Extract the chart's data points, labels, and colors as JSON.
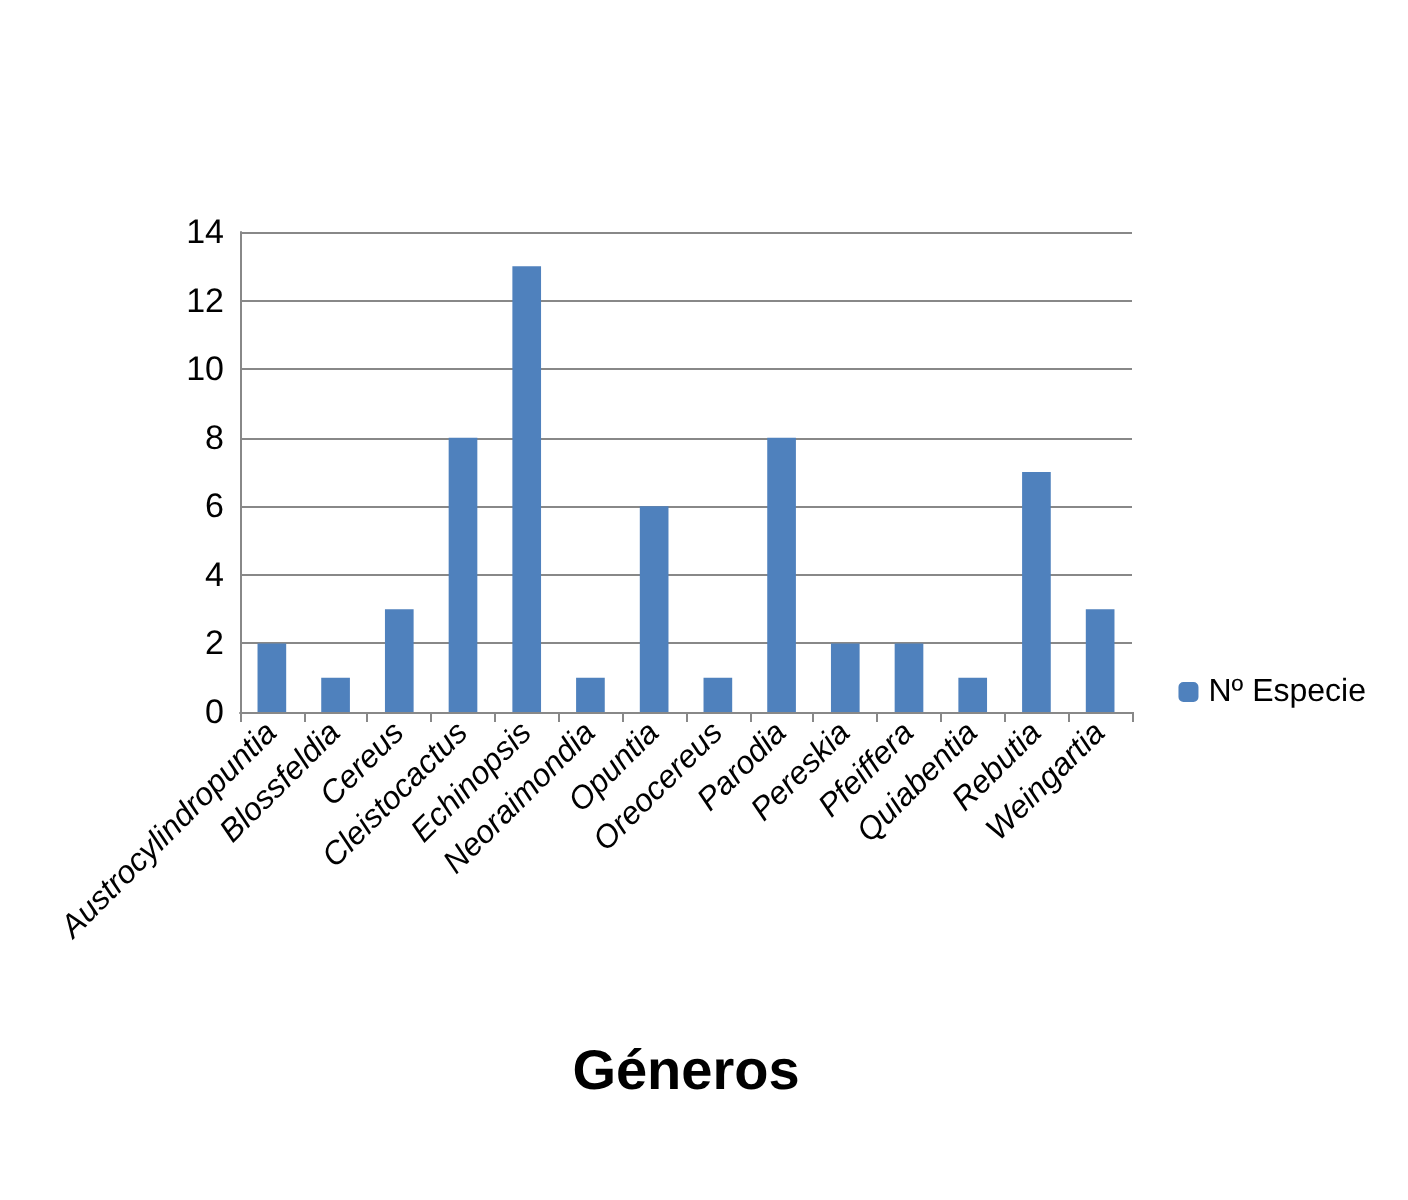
{
  "chart_data": {
    "type": "bar",
    "xlabel": "Géneros",
    "categories": [
      "Austrocylindropuntia",
      "Blossfeldia",
      "Cereus",
      "Cleistocactus",
      "Echinopsis",
      "Neoraimondia",
      "Opuntia",
      "Oreocereus",
      "Parodia",
      "Pereskia",
      "Pfeiffera",
      "Quiabentia",
      "Rebutia",
      "Weingartia"
    ],
    "series": [
      {
        "name": "Nº Especie",
        "color": "#4f81bd",
        "values": [
          2,
          1,
          3,
          8,
          13,
          1,
          6,
          1,
          8,
          2,
          2,
          1,
          7,
          3
        ]
      }
    ],
    "ylim": [
      0,
      14
    ],
    "yticks": [
      0,
      2,
      4,
      6,
      8,
      10,
      12,
      14
    ],
    "grid": "y",
    "legend": "right"
  }
}
